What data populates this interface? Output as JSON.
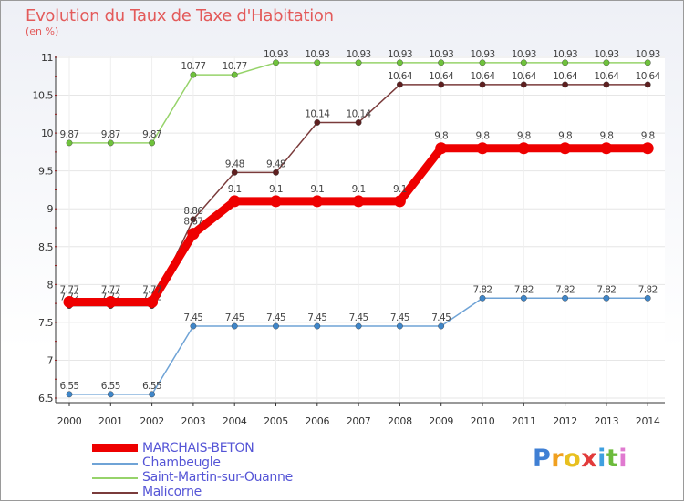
{
  "chart_data": {
    "type": "line",
    "title": "Evolution du Taux de Taxe d'Habitation",
    "ylabel": "(en %)",
    "xlabel": "",
    "ylim": [
      6.5,
      11
    ],
    "yticks": [
      6.5,
      7,
      7.5,
      8,
      8.5,
      9,
      9.5,
      10,
      10.5,
      11
    ],
    "ytick_labels": [
      "6.5",
      "7",
      "7.5",
      "8",
      "8.5",
      "9",
      "9.5",
      "10",
      "10.5",
      "11"
    ],
    "categories": [
      "2000",
      "2001",
      "2002",
      "2003",
      "2004",
      "2005",
      "2006",
      "2007",
      "2008",
      "2009",
      "2010",
      "2011",
      "2012",
      "2013",
      "2014"
    ],
    "series": [
      {
        "name": "MARCHAIS-BETON",
        "color": "#ee0000",
        "point_color": "#ee0000",
        "emphasis": true,
        "values": [
          7.77,
          7.77,
          7.77,
          8.67,
          9.1,
          9.1,
          9.1,
          9.1,
          9.1,
          9.8,
          9.8,
          9.8,
          9.8,
          9.8,
          9.8
        ],
        "labels": [
          "7.77",
          "7.77",
          "7.77",
          "8.67",
          "9.1",
          "9.1",
          "9.1",
          "9.1",
          "9.1",
          "9.8",
          "9.8",
          "9.8",
          "9.8",
          "9.8",
          "9.8"
        ]
      },
      {
        "name": "Chambeugle",
        "color": "#6fa3d6",
        "point_color": "#3f86c9",
        "emphasis": false,
        "values": [
          6.55,
          6.55,
          6.55,
          7.45,
          7.45,
          7.45,
          7.45,
          7.45,
          7.45,
          7.45,
          7.82,
          7.82,
          7.82,
          7.82,
          7.82
        ],
        "labels": [
          "6.55",
          "6.55",
          "6.55",
          "7.45",
          "7.45",
          "7.45",
          "7.45",
          "7.45",
          "7.45",
          "7.45",
          "7.82",
          "7.82",
          "7.82",
          "7.82",
          "7.82"
        ]
      },
      {
        "name": "Saint-Martin-sur-Ouanne",
        "color": "#96d36a",
        "point_color": "#6fc23c",
        "emphasis": false,
        "values": [
          9.87,
          9.87,
          9.87,
          10.77,
          10.77,
          10.93,
          10.93,
          10.93,
          10.93,
          10.93,
          10.93,
          10.93,
          10.93,
          10.93,
          10.93
        ],
        "labels": [
          "9.87",
          "9.87",
          "9.87",
          "10.77",
          "10.77",
          "10.93",
          "10.93",
          "10.93",
          "10.93",
          "10.93",
          "10.93",
          "10.93",
          "10.93",
          "10.93",
          "10.93"
        ]
      },
      {
        "name": "Malicorne",
        "color": "#7a3b3b",
        "point_color": "#5e1f1f",
        "emphasis": false,
        "values": [
          7.72,
          7.72,
          7.72,
          8.86,
          9.48,
          9.48,
          10.14,
          10.14,
          10.64,
          10.64,
          10.64,
          10.64,
          10.64,
          10.64,
          10.64
        ],
        "labels": [
          "7.72",
          "7.72",
          "7.72",
          "8.86",
          "9.48",
          "9.48",
          "10.14",
          "10.14",
          "10.64",
          "10.64",
          "10.64",
          "10.64",
          "10.64",
          "10.64",
          "10.64"
        ]
      }
    ],
    "legend_position": "bottom-left"
  },
  "legend": {
    "items": [
      {
        "label": "MARCHAIS-BETON",
        "color": "#ee0000"
      },
      {
        "label": "Chambeugle",
        "color": "#6fa3d6"
      },
      {
        "label": "Saint-Martin-sur-Ouanne",
        "color": "#96d36a"
      },
      {
        "label": "Malicorne",
        "color": "#7a3b3b"
      }
    ]
  },
  "logo": {
    "letters": [
      "P",
      "r",
      "o",
      "x",
      "i",
      "t",
      "i"
    ],
    "colors": [
      "#3f7fd4",
      "#f0a020",
      "#e8c020",
      "#e23b3b",
      "#3fa0e0",
      "#6cbb3c",
      "#e07ad0"
    ]
  }
}
